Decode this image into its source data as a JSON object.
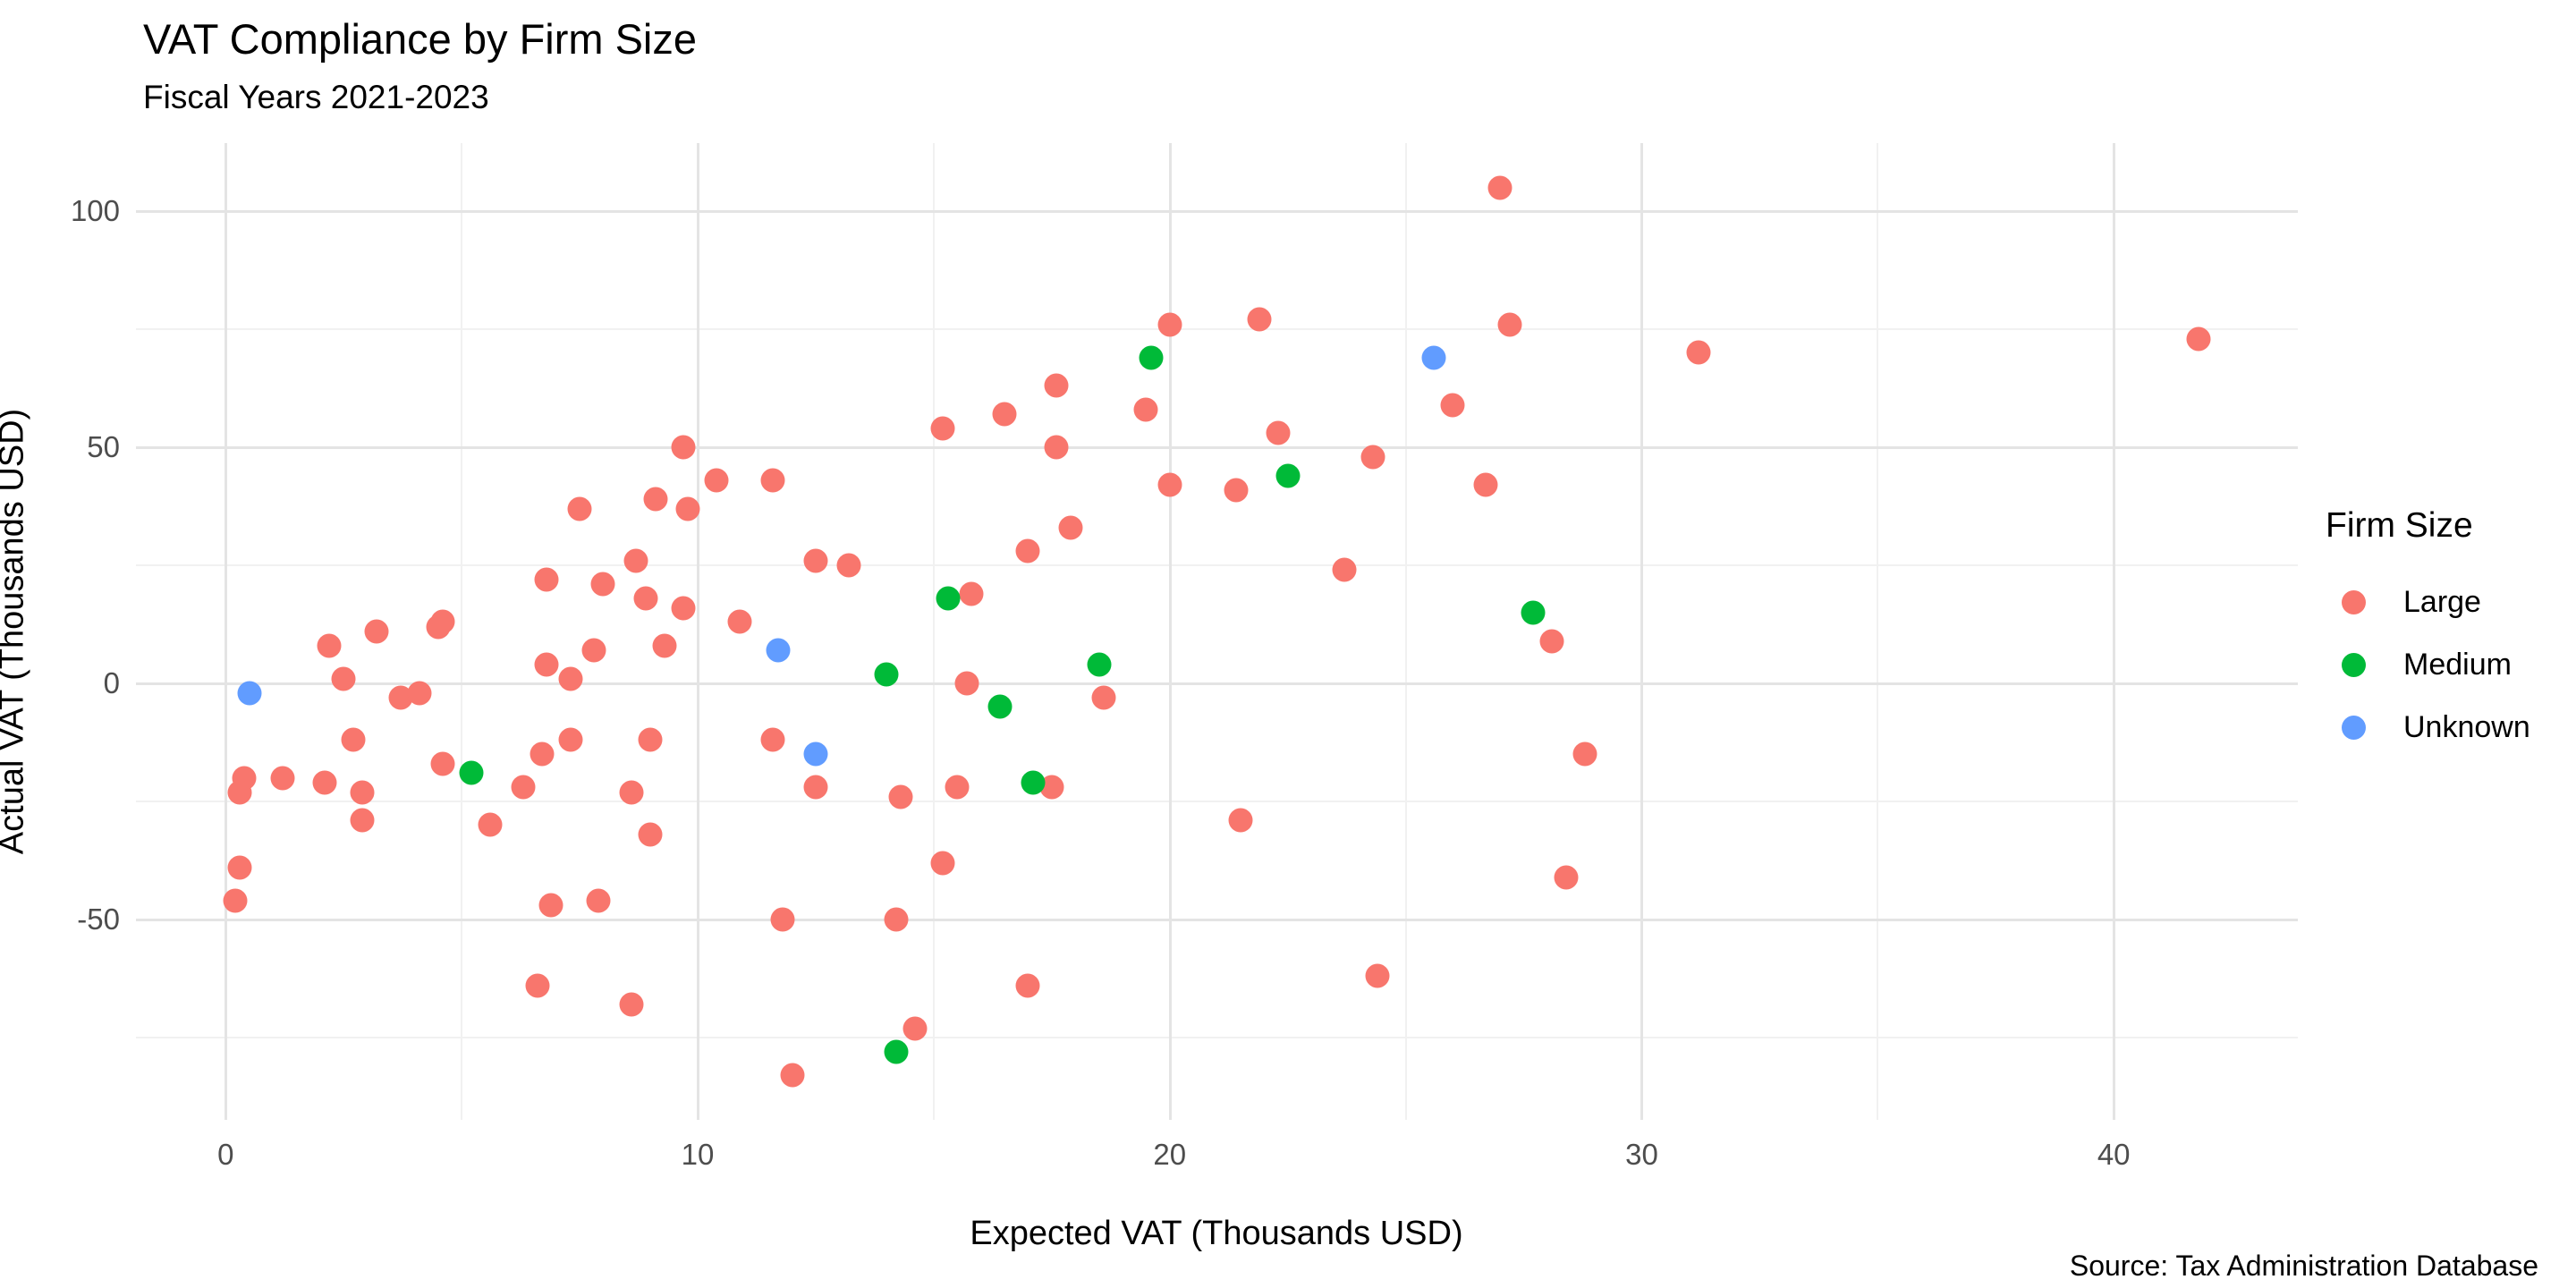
{
  "header": {
    "title": "VAT Compliance by Firm Size",
    "subtitle": "Fiscal Years 2021-2023"
  },
  "caption": "Source: Tax Administration Database",
  "legend": {
    "title": "Firm Size",
    "items": [
      {
        "label": "Large",
        "color": "#F8766D"
      },
      {
        "label": "Medium",
        "color": "#00BA38"
      },
      {
        "label": "Unknown",
        "color": "#619CFF"
      }
    ]
  },
  "chart_data": {
    "type": "scatter",
    "title": "VAT Compliance by Firm Size",
    "subtitle": "Fiscal Years 2021-2023",
    "xlabel": "Expected VAT (Thousands USD)",
    "ylabel": "Actual VAT (Thousands USD)",
    "xlim": [
      -1.9,
      43.9
    ],
    "ylim": [
      -92.4,
      114.4
    ],
    "x_major_ticks": [
      0,
      10,
      20,
      30,
      40
    ],
    "y_major_ticks": [
      -50,
      0,
      50,
      100
    ],
    "x_minor_ticks": [
      5,
      15,
      25,
      35
    ],
    "y_minor_ticks": [
      -75,
      -25,
      25,
      75
    ],
    "grid": true,
    "legend_position": "right",
    "point_colors": {
      "Large": "#F8766D",
      "Medium": "#00BA38",
      "Unknown": "#619CFF"
    },
    "series": [
      {
        "name": "Large",
        "color": "#F8766D",
        "points": [
          [
            0.4,
            -20
          ],
          [
            0.3,
            -23
          ],
          [
            0.3,
            -39
          ],
          [
            0.2,
            -46
          ],
          [
            1.2,
            -20
          ],
          [
            2.1,
            -21
          ],
          [
            2.2,
            8
          ],
          [
            2.5,
            1
          ],
          [
            3.2,
            11
          ],
          [
            2.7,
            -12
          ],
          [
            2.9,
            -23
          ],
          [
            2.9,
            -29
          ],
          [
            3.7,
            -3
          ],
          [
            4.1,
            -2
          ],
          [
            4.5,
            12
          ],
          [
            4.6,
            13
          ],
          [
            4.6,
            -17
          ],
          [
            5.6,
            -30
          ],
          [
            6.3,
            -22
          ],
          [
            6.7,
            -15
          ],
          [
            7.3,
            -12
          ],
          [
            6.8,
            22
          ],
          [
            8.0,
            21
          ],
          [
            6.8,
            4
          ],
          [
            7.3,
            1
          ],
          [
            7.8,
            7
          ],
          [
            6.9,
            -47
          ],
          [
            7.9,
            -46
          ],
          [
            6.6,
            -64
          ],
          [
            8.6,
            -68
          ],
          [
            9.0,
            -12
          ],
          [
            8.6,
            -23
          ],
          [
            9.0,
            -32
          ],
          [
            7.5,
            37
          ],
          [
            9.1,
            39
          ],
          [
            9.8,
            37
          ],
          [
            9.7,
            50
          ],
          [
            10.4,
            43
          ],
          [
            11.6,
            43
          ],
          [
            8.7,
            26
          ],
          [
            8.9,
            18
          ],
          [
            9.7,
            16
          ],
          [
            9.3,
            8
          ],
          [
            10.9,
            13
          ],
          [
            12.5,
            26
          ],
          [
            13.2,
            25
          ],
          [
            11.6,
            -12
          ],
          [
            12.5,
            -22
          ],
          [
            11.8,
            -50
          ],
          [
            12.0,
            -83
          ],
          [
            14.3,
            -24
          ],
          [
            15.5,
            -22
          ],
          [
            15.2,
            -38
          ],
          [
            14.2,
            -50
          ],
          [
            14.6,
            -73
          ],
          [
            17.0,
            -64
          ],
          [
            17.5,
            -22
          ],
          [
            15.7,
            0
          ],
          [
            18.6,
            -3
          ],
          [
            15.2,
            54
          ],
          [
            16.5,
            57
          ],
          [
            17.6,
            63
          ],
          [
            17.6,
            50
          ],
          [
            17.9,
            33
          ],
          [
            17.0,
            28
          ],
          [
            15.8,
            19
          ],
          [
            19.5,
            58
          ],
          [
            20.0,
            76
          ],
          [
            21.9,
            77
          ],
          [
            20.0,
            42
          ],
          [
            21.4,
            41
          ],
          [
            22.3,
            53
          ],
          [
            24.3,
            48
          ],
          [
            23.7,
            24
          ],
          [
            26.0,
            59
          ],
          [
            26.7,
            42
          ],
          [
            27.0,
            105
          ],
          [
            27.2,
            76
          ],
          [
            28.1,
            9
          ],
          [
            21.5,
            -29
          ],
          [
            24.4,
            -62
          ],
          [
            28.4,
            -41
          ],
          [
            28.8,
            -15
          ],
          [
            31.2,
            70
          ],
          [
            41.8,
            73
          ]
        ]
      },
      {
        "name": "Medium",
        "color": "#00BA38",
        "points": [
          [
            5.2,
            -19
          ],
          [
            14.0,
            2
          ],
          [
            14.2,
            -78
          ],
          [
            15.3,
            18
          ],
          [
            16.4,
            -5
          ],
          [
            17.1,
            -21
          ],
          [
            18.5,
            4
          ],
          [
            19.6,
            69
          ],
          [
            22.5,
            44
          ],
          [
            27.7,
            15
          ]
        ]
      },
      {
        "name": "Unknown",
        "color": "#619CFF",
        "points": [
          [
            0.5,
            -2
          ],
          [
            11.7,
            7
          ],
          [
            12.5,
            -15
          ],
          [
            25.6,
            69
          ]
        ]
      }
    ]
  }
}
